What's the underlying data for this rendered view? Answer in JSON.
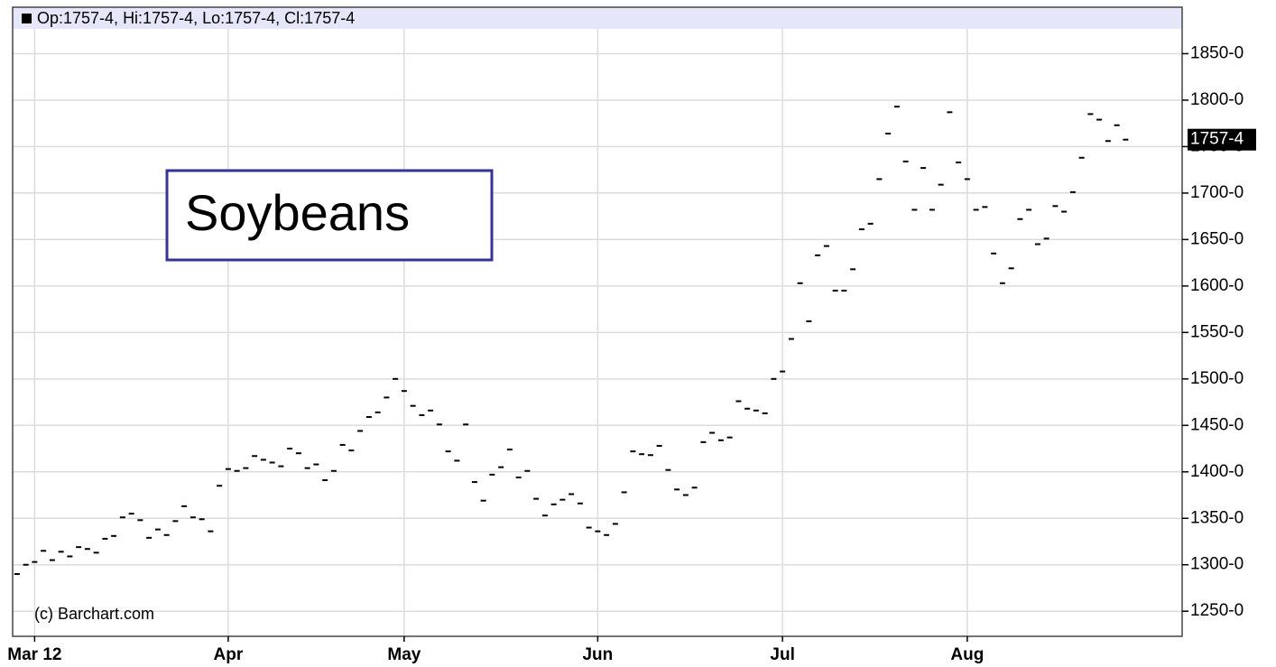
{
  "chart_data": {
    "type": "dash",
    "header": "Op:1757-4, Hi:1757-4, Lo:1757-4, Cl:1757-4",
    "annotation": "Soybeans",
    "credit": "(c) Barchart.com",
    "color": "#000000",
    "grid": true,
    "ylim": [
      1223,
      1900
    ],
    "yticks": [
      {
        "value": 1250,
        "label": "1250-0"
      },
      {
        "value": 1300,
        "label": "1300-0"
      },
      {
        "value": 1350,
        "label": "1350-0"
      },
      {
        "value": 1400,
        "label": "1400-0"
      },
      {
        "value": 1450,
        "label": "1450-0"
      },
      {
        "value": 1500,
        "label": "1500-0"
      },
      {
        "value": 1550,
        "label": "1550-0"
      },
      {
        "value": 1600,
        "label": "1600-0"
      },
      {
        "value": 1650,
        "label": "1650-0"
      },
      {
        "value": 1700,
        "label": "1700-0"
      },
      {
        "value": 1750,
        "label": "1750-0"
      },
      {
        "value": 1800,
        "label": "1800-0"
      },
      {
        "value": 1850,
        "label": "1850-0"
      }
    ],
    "last_price": {
      "value": 1757.5,
      "label": "1757-4"
    },
    "categories": [
      null,
      null,
      "Mar 12",
      null,
      null,
      null,
      null,
      null,
      null,
      null,
      null,
      null,
      null,
      null,
      null,
      null,
      null,
      null,
      null,
      null,
      null,
      null,
      null,
      null,
      "Apr",
      null,
      null,
      null,
      null,
      null,
      null,
      null,
      null,
      null,
      null,
      null,
      null,
      null,
      null,
      null,
      null,
      null,
      null,
      null,
      "May",
      null,
      null,
      null,
      null,
      null,
      null,
      null,
      null,
      null,
      null,
      null,
      null,
      null,
      null,
      null,
      null,
      null,
      null,
      null,
      null,
      null,
      "Jun",
      null,
      null,
      null,
      null,
      null,
      null,
      null,
      null,
      null,
      null,
      null,
      null,
      null,
      null,
      null,
      null,
      null,
      null,
      null,
      null,
      "Jul",
      null,
      null,
      null,
      null,
      null,
      null,
      null,
      null,
      null,
      null,
      null,
      null,
      null,
      null,
      null,
      null,
      null,
      null,
      null,
      null,
      "Aug",
      null,
      null,
      null,
      null,
      null,
      null,
      null,
      null,
      null,
      null,
      null,
      null,
      null,
      null,
      null,
      null,
      null,
      null
    ],
    "values": [
      1290,
      1300,
      1303,
      1315,
      1305,
      1314,
      1309,
      1319,
      1317,
      1313,
      1328,
      1331,
      1351,
      1355,
      1348,
      1329,
      1338,
      1332,
      1347,
      1363,
      1351,
      1349,
      1336,
      1385,
      1403,
      1401,
      1404,
      1417,
      1413,
      1410,
      1406,
      1425,
      1420,
      1404,
      1408,
      1391,
      1401,
      1429,
      1423,
      1444,
      1459,
      1464,
      1480,
      1500,
      1487,
      1471,
      1461,
      1466,
      1451,
      1422,
      1412,
      1451,
      1389,
      1369,
      1397,
      1405,
      1424,
      1394,
      1401,
      1371,
      1353,
      1365,
      1370,
      1376,
      1366,
      1340,
      1336,
      1332,
      1344,
      1378,
      1422,
      1419,
      1418,
      1428,
      1402,
      1381,
      1375,
      1383,
      1432,
      1442,
      1434,
      1437,
      1476,
      1468,
      1466,
      1463,
      1500,
      1508,
      1543,
      1603,
      1562,
      1633,
      1643,
      1595,
      1595,
      1618,
      1661,
      1667,
      1715,
      1764,
      1793,
      1734,
      1682,
      1727,
      1682,
      1709,
      1787,
      1733,
      1715,
      1682,
      1685,
      1635,
      1603,
      1619,
      1672,
      1682,
      1645,
      1651,
      1686,
      1680,
      1701,
      1738,
      1785,
      1779,
      1756,
      1773,
      1757.5
    ]
  }
}
